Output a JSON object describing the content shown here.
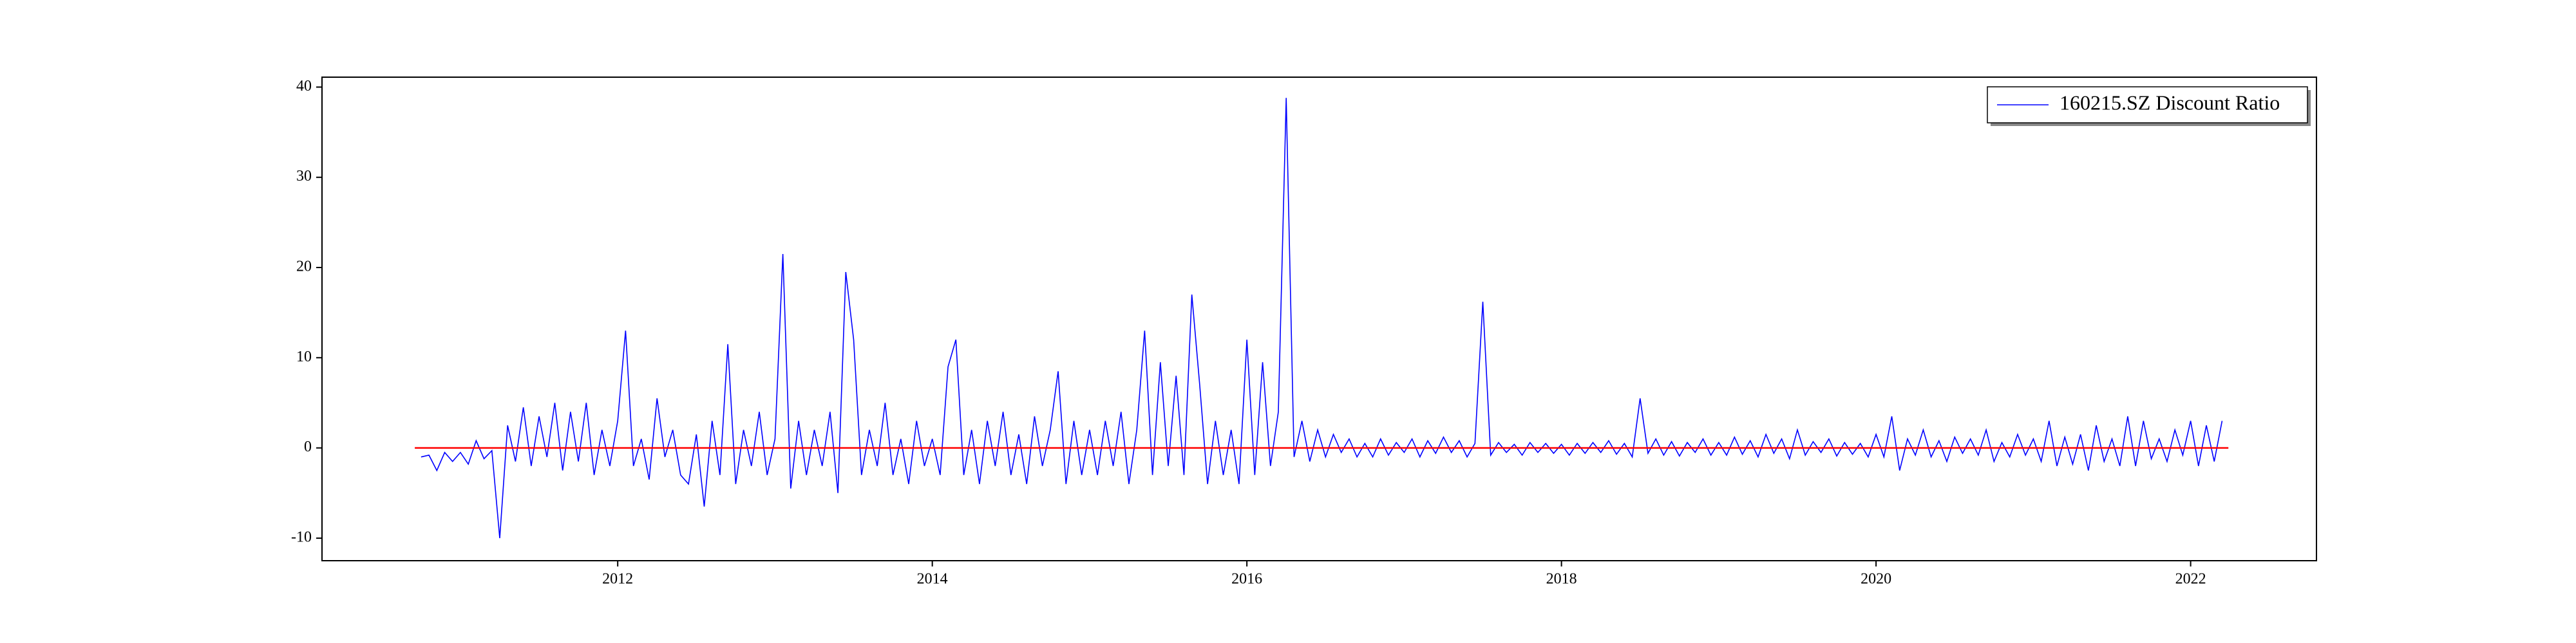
{
  "chart_data": {
    "type": "line",
    "legend": "upper right",
    "xlim": [
      2010.12,
      2022.8
    ],
    "xticks": [
      2012,
      2014,
      2016,
      2018,
      2020,
      2022
    ],
    "ylim": [
      -12.5,
      41.1
    ],
    "yticks": [
      -10,
      0,
      10,
      20,
      30,
      40
    ],
    "series": [
      {
        "name": "160215.SZ Discount Ratio",
        "color": "#0000ff",
        "x": [
          2010.75,
          2010.8,
          2010.85,
          2010.9,
          2010.95,
          2011,
          2011.05,
          2011.1,
          2011.15,
          2011.2,
          2011.25,
          2011.3,
          2011.35,
          2011.4,
          2011.45,
          2011.5,
          2011.55,
          2011.6,
          2011.65,
          2011.7,
          2011.75,
          2011.8,
          2011.85,
          2011.9,
          2011.95,
          2012,
          2012.05,
          2012.1,
          2012.15,
          2012.2,
          2012.25,
          2012.3,
          2012.35,
          2012.4,
          2012.45,
          2012.5,
          2012.55,
          2012.6,
          2012.65,
          2012.7,
          2012.75,
          2012.8,
          2012.85,
          2012.9,
          2012.95,
          2013,
          2013.05,
          2013.1,
          2013.15,
          2013.2,
          2013.25,
          2013.3,
          2013.35,
          2013.4,
          2013.45,
          2013.5,
          2013.55,
          2013.6,
          2013.65,
          2013.7,
          2013.75,
          2013.8,
          2013.85,
          2013.9,
          2013.95,
          2014,
          2014.05,
          2014.1,
          2014.15,
          2014.2,
          2014.25,
          2014.3,
          2014.35,
          2014.4,
          2014.45,
          2014.5,
          2014.55,
          2014.6,
          2014.65,
          2014.7,
          2014.75,
          2014.8,
          2014.85,
          2014.9,
          2014.95,
          2015,
          2015.05,
          2015.1,
          2015.15,
          2015.2,
          2015.25,
          2015.3,
          2015.35,
          2015.4,
          2015.45,
          2015.5,
          2015.55,
          2015.6,
          2015.65,
          2015.7,
          2015.75,
          2015.8,
          2015.85,
          2015.9,
          2015.95,
          2016,
          2016.05,
          2016.1,
          2016.15,
          2016.2,
          2016.25,
          2016.3,
          2016.35,
          2016.4,
          2016.45,
          2016.5,
          2016.55,
          2016.6,
          2016.65,
          2016.7,
          2016.75,
          2016.8,
          2016.85,
          2016.9,
          2016.95,
          2017,
          2017.05,
          2017.1,
          2017.15,
          2017.2,
          2017.25,
          2017.3,
          2017.35,
          2017.4,
          2017.45,
          2017.5,
          2017.55,
          2017.6,
          2017.65,
          2017.7,
          2017.75,
          2017.8,
          2017.85,
          2017.9,
          2017.95,
          2018,
          2018.05,
          2018.1,
          2018.15,
          2018.2,
          2018.25,
          2018.3,
          2018.35,
          2018.4,
          2018.45,
          2018.5,
          2018.55,
          2018.6,
          2018.65,
          2018.7,
          2018.75,
          2018.8,
          2018.85,
          2018.9,
          2018.95,
          2019,
          2019.05,
          2019.1,
          2019.15,
          2019.2,
          2019.25,
          2019.3,
          2019.35,
          2019.4,
          2019.45,
          2019.5,
          2019.55,
          2019.6,
          2019.65,
          2019.7,
          2019.75,
          2019.8,
          2019.85,
          2019.9,
          2019.95,
          2020,
          2020.05,
          2020.1,
          2020.15,
          2020.2,
          2020.25,
          2020.3,
          2020.35,
          2020.4,
          2020.45,
          2020.5,
          2020.55,
          2020.6,
          2020.65,
          2020.7,
          2020.75,
          2020.8,
          2020.85,
          2020.9,
          2020.95,
          2021,
          2021.05,
          2021.1,
          2021.15,
          2021.2,
          2021.25,
          2021.3,
          2021.35,
          2021.4,
          2021.45,
          2021.5,
          2021.55,
          2021.6,
          2021.65,
          2021.7,
          2021.75,
          2021.8,
          2021.85,
          2021.9,
          2021.95,
          2022,
          2022.05,
          2022.1,
          2022.15,
          2022.2
        ],
        "values": [
          -1,
          -0.8,
          -2.5,
          -0.5,
          -1.5,
          -0.5,
          -1.8,
          0.8,
          -1.2,
          -0.3,
          -10,
          2.5,
          -1.5,
          4.5,
          -2,
          3.5,
          -1,
          5,
          -2.5,
          4,
          -1.5,
          5,
          -3,
          2,
          -2,
          3,
          13,
          -2,
          1,
          -3.5,
          5.5,
          -1,
          2,
          -3,
          -4,
          1.5,
          -6.5,
          3,
          -3,
          11.5,
          -4,
          2,
          -2,
          4,
          -3,
          1,
          21.5,
          -4.5,
          3,
          -3,
          2,
          -2,
          4,
          -5,
          19.5,
          12,
          -3,
          2,
          -2,
          5,
          -3,
          1,
          -4,
          3,
          -2,
          1,
          -3,
          9,
          12,
          -3,
          2,
          -4,
          3,
          -2,
          4,
          -3,
          1.5,
          -4,
          3.5,
          -2,
          2,
          8.5,
          -4,
          3,
          -3,
          2,
          -3,
          3,
          -2,
          4,
          -4,
          2,
          13,
          -3,
          9.5,
          -2,
          8,
          -3,
          17,
          7,
          -4,
          3,
          -3,
          2,
          -4,
          12,
          -3,
          9.5,
          -2,
          4,
          38.8,
          -1,
          3,
          -1.5,
          2,
          -1,
          1.5,
          -0.5,
          1,
          -1,
          0.5,
          -1,
          1,
          -0.8,
          0.6,
          -0.5,
          1,
          -1,
          0.8,
          -0.6,
          1.2,
          -0.5,
          0.8,
          -1,
          0.5,
          16.2,
          -0.8,
          0.6,
          -0.5,
          0.4,
          -0.8,
          0.6,
          -0.5,
          0.5,
          -0.6,
          0.4,
          -0.8,
          0.5,
          -0.6,
          0.6,
          -0.5,
          0.8,
          -0.7,
          0.5,
          -1,
          5.5,
          -0.6,
          1,
          -0.8,
          0.7,
          -0.9,
          0.6,
          -0.5,
          1,
          -0.8,
          0.6,
          -0.8,
          1.2,
          -0.7,
          0.8,
          -1,
          1.5,
          -0.6,
          1,
          -1.2,
          2,
          -0.8,
          0.7,
          -0.5,
          1,
          -0.9,
          0.6,
          -0.7,
          0.5,
          -1,
          1.5,
          -1,
          3.5,
          -2.5,
          1,
          -0.8,
          2,
          -1,
          0.8,
          -1.5,
          1.2,
          -0.6,
          1,
          -0.8,
          2,
          -1.5,
          0.6,
          -1,
          1.5,
          -0.8,
          1,
          -1.5,
          3,
          -2,
          1.2,
          -1.8,
          1.5,
          -2.5,
          2.5,
          -1.5,
          1,
          -2,
          3.5,
          -2,
          3,
          -1.2,
          1,
          -1.5,
          2,
          -0.8,
          3,
          -2,
          2.5,
          -1.5,
          3
        ]
      },
      {
        "color": "#ff0000",
        "x": [
          2010.71,
          2022.24
        ],
        "values": [
          0,
          0
        ]
      }
    ]
  }
}
